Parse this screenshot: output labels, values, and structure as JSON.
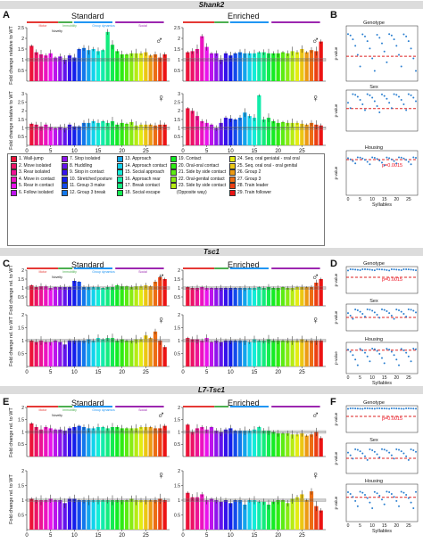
{
  "headers": {
    "a": "Shank2",
    "b": "Tsc1",
    "c": "L7-Tsc1"
  },
  "panel_labels": [
    "A",
    "B",
    "C",
    "D",
    "E",
    "F"
  ],
  "conditions": [
    "Standard",
    "Enriched"
  ],
  "sex_symbols": [
    "♂",
    "♀"
  ],
  "category_labels": [
    "Motor",
    "Immobility",
    "Group dynamics",
    "Social",
    "Novelty"
  ],
  "category_colors": [
    "#e53935",
    "#4caf50",
    "#2196f3",
    "#9c27b0"
  ],
  "ylabels": {
    "a_top": "Fold change relative to WT",
    "a_bot": "Fold change relative to WT",
    "c": "Fold change rel. to WT",
    "e": "Fold change rel. to WT"
  },
  "right_titles": [
    "Genotype",
    "Sex",
    "Housing"
  ],
  "right_ylabel": "p-value",
  "right_xlabel": "Syllables",
  "pval_note": "p=0.0015",
  "legend_items": [
    "1. Wall-jump",
    "2. Move isolated",
    "3. Rear isolated",
    "4. Move in contact",
    "5. Rear in contact",
    "6. Follow isolated",
    "7. Stop isolated",
    "8. Huddling",
    "9. Stop in contact",
    "10. Stretched posture",
    "11. Group 3 make",
    "12. Group 3 break",
    "13. Approach",
    "14. Approach contact",
    "15. Social approach",
    "16. Approach rear",
    "17. Break contact",
    "18. Social escape",
    "19. Contact",
    "20. Oral-oral contact",
    "21. Side by side contact",
    "22. Oral-genital contact",
    "23. Side by side contact",
    "(Opposite way)",
    "24. Seq. oral geniatal - oral oral",
    "25. Seq. oral oral - oral genital",
    "26. Group 2",
    "27. Group 3",
    "28. Train leader",
    "29. Train follower"
  ],
  "x_ticks": [
    "0",
    "5",
    "10",
    "15",
    "20",
    "25"
  ],
  "r_x_ticks": [
    "0",
    "5",
    "10",
    "15",
    "20",
    "25"
  ],
  "chart_data": [
    {
      "type": "bar",
      "panel": "A",
      "sex": "male",
      "condition": "Standard",
      "ylim": [
        0,
        2.5
      ],
      "yticks": [
        0.5,
        1,
        1.5,
        2,
        2.5
      ],
      "x": [
        1,
        2,
        3,
        4,
        5,
        6,
        7,
        8,
        9,
        10,
        11,
        12,
        13,
        14,
        15,
        16,
        17,
        18,
        19,
        20,
        21,
        22,
        23,
        24,
        25,
        26,
        27,
        28,
        29
      ],
      "values": [
        1.65,
        1.35,
        1.25,
        1.2,
        1.3,
        1.1,
        1.15,
        1.0,
        1.2,
        1.1,
        1.5,
        1.55,
        1.45,
        1.5,
        1.4,
        1.45,
        2.3,
        1.7,
        1.4,
        1.25,
        1.25,
        1.3,
        1.3,
        1.3,
        1.35,
        1.2,
        1.25,
        1.1,
        1.25
      ]
    },
    {
      "type": "bar",
      "panel": "A",
      "sex": "male",
      "condition": "Enriched",
      "ylim": [
        0,
        2.5
      ],
      "values": [
        1.35,
        1.4,
        1.5,
        2.1,
        1.6,
        1.3,
        1.3,
        1.0,
        1.3,
        1.2,
        1.3,
        1.35,
        1.3,
        1.3,
        1.3,
        1.35,
        1.35,
        1.3,
        1.3,
        1.3,
        1.35,
        1.3,
        1.4,
        1.35,
        1.5,
        1.35,
        1.45,
        1.4,
        1.85
      ]
    },
    {
      "type": "bar",
      "panel": "A",
      "sex": "female",
      "condition": "Standard",
      "ylim": [
        0,
        3
      ],
      "values": [
        1.25,
        1.2,
        1.1,
        1.2,
        1.05,
        1.0,
        1.05,
        1.0,
        1.2,
        1.1,
        1.1,
        1.3,
        1.3,
        1.4,
        1.3,
        1.4,
        1.3,
        1.4,
        1.2,
        1.3,
        1.25,
        1.35,
        1.15,
        1.2,
        1.2,
        1.2,
        1.15,
        1.2,
        1.2
      ]
    },
    {
      "type": "bar",
      "panel": "A",
      "sex": "female",
      "condition": "Enriched",
      "ylim": [
        0,
        3
      ],
      "values": [
        2.15,
        2.0,
        1.7,
        1.4,
        1.3,
        1.2,
        1.0,
        1.3,
        1.6,
        1.55,
        1.5,
        1.6,
        1.9,
        1.7,
        1.6,
        2.9,
        1.5,
        1.6,
        1.4,
        1.3,
        1.35,
        1.3,
        1.3,
        1.3,
        1.25,
        1.2,
        1.3,
        1.2,
        1.15
      ]
    },
    {
      "type": "bar",
      "panel": "C",
      "sex": "male",
      "condition": "Standard",
      "ylim": [
        0,
        2
      ],
      "values": [
        1.15,
        1.05,
        1.1,
        1.1,
        1.0,
        1.05,
        1.05,
        1.05,
        1.05,
        1.4,
        1.35,
        1.05,
        1.05,
        1.05,
        1.05,
        1.0,
        1.05,
        1.05,
        1.15,
        1.1,
        1.1,
        1.05,
        1.1,
        1.1,
        1.15,
        1.1,
        1.35,
        1.6,
        1.5
      ]
    },
    {
      "type": "bar",
      "panel": "C",
      "sex": "male",
      "condition": "Enriched",
      "ylim": [
        0,
        2
      ],
      "values": [
        1.05,
        1.0,
        1.0,
        1.05,
        1.0,
        1.0,
        1.0,
        1.0,
        1.0,
        1.0,
        1.0,
        1.0,
        1.0,
        1.0,
        1.0,
        1.05,
        1.0,
        1.05,
        1.0,
        1.0,
        1.05,
        1.0,
        1.0,
        1.05,
        1.05,
        1.05,
        1.05,
        1.3,
        1.5
      ]
    },
    {
      "type": "bar",
      "panel": "C",
      "sex": "female",
      "condition": "Standard",
      "ylim": [
        0,
        2
      ],
      "values": [
        1.0,
        0.95,
        1.0,
        0.95,
        0.95,
        1.0,
        0.95,
        0.85,
        1.0,
        1.0,
        1.0,
        1.0,
        1.05,
        1.0,
        1.1,
        1.05,
        1.1,
        1.1,
        1.0,
        1.05,
        1.0,
        1.0,
        1.05,
        1.05,
        1.2,
        1.1,
        1.35,
        1.0,
        0.75
      ]
    },
    {
      "type": "bar",
      "panel": "C",
      "sex": "female",
      "condition": "Enriched",
      "ylim": [
        0,
        2
      ],
      "values": [
        1.1,
        1.05,
        1.05,
        1.0,
        1.1,
        0.95,
        1.0,
        0.95,
        1.0,
        1.0,
        1.0,
        1.0,
        1.0,
        0.95,
        1.05,
        1.0,
        1.0,
        1.05,
        1.0,
        1.0,
        1.0,
        1.0,
        1.0,
        1.0,
        1.05,
        1.0,
        1.0,
        1.0,
        1.0
      ]
    },
    {
      "type": "bar",
      "panel": "E",
      "sex": "male",
      "condition": "Standard",
      "ylim": [
        0,
        2
      ],
      "values": [
        1.35,
        1.2,
        1.1,
        1.2,
        1.15,
        1.1,
        1.1,
        1.05,
        1.15,
        1.2,
        1.25,
        1.2,
        1.15,
        1.15,
        1.2,
        1.2,
        1.15,
        1.2,
        1.2,
        1.15,
        1.15,
        1.15,
        1.15,
        1.2,
        1.2,
        1.2,
        1.15,
        1.15,
        1.25
      ]
    },
    {
      "type": "bar",
      "panel": "E",
      "sex": "male",
      "condition": "Enriched",
      "ylim": [
        0,
        2
      ],
      "values": [
        1.3,
        1.0,
        1.15,
        1.2,
        1.1,
        1.2,
        1.05,
        1.0,
        1.1,
        1.15,
        1.05,
        1.05,
        1.05,
        1.05,
        1.1,
        1.2,
        1.05,
        1.05,
        1.0,
        0.95,
        0.95,
        0.95,
        0.9,
        0.9,
        0.95,
        0.85,
        0.9,
        1.0,
        0.75
      ]
    },
    {
      "type": "bar",
      "panel": "E",
      "sex": "female",
      "condition": "Standard",
      "ylim": [
        0,
        2
      ],
      "values": [
        1.05,
        1.0,
        1.0,
        1.0,
        1.05,
        1.0,
        1.0,
        0.9,
        1.05,
        1.05,
        1.0,
        1.0,
        1.0,
        1.0,
        1.0,
        1.0,
        1.0,
        1.0,
        1.0,
        1.0,
        1.0,
        1.05,
        1.0,
        1.0,
        1.0,
        1.0,
        1.0,
        1.05,
        1.0
      ]
    },
    {
      "type": "bar",
      "panel": "E",
      "sex": "female",
      "condition": "Enriched",
      "ylim": [
        0,
        2
      ],
      "values": [
        1.25,
        1.1,
        1.1,
        1.2,
        1.0,
        1.05,
        1.0,
        0.95,
        1.0,
        0.9,
        1.0,
        1.0,
        0.85,
        1.0,
        1.0,
        0.95,
        0.95,
        0.85,
        0.95,
        1.0,
        1.0,
        0.9,
        1.05,
        1.1,
        1.2,
        1.0,
        1.3,
        0.8,
        0.65
      ]
    }
  ]
}
